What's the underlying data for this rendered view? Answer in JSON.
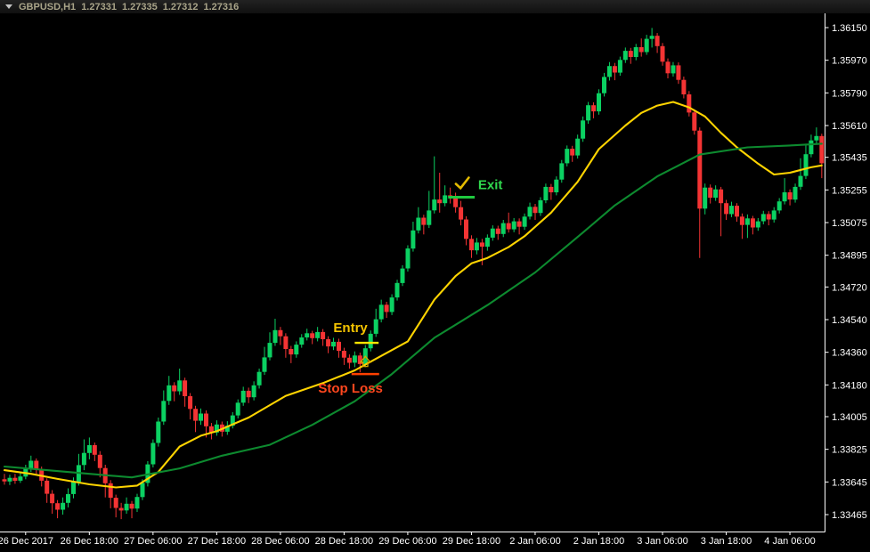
{
  "titlebar": {
    "symbol_period": "GBPUSD,H1",
    "quote_open": "1.27331",
    "quote_high": "1.27335",
    "quote_low": "1.27312",
    "quote_close": "1.27316"
  },
  "colors": {
    "background": "#000000",
    "bull_candle": "#0bd162",
    "bear_candle": "#f43434",
    "fast_ma": "#ffd400",
    "slow_ma": "#0d8a2f",
    "axis_line": "#ffffff",
    "axis_text": "#ffffff",
    "title_text": "#a9a489",
    "entry_text": "#f5c400",
    "entry_line": "#ffe600",
    "buy_arrow": "#d9a800",
    "stop_loss_text": "#ff471e",
    "stop_loss_line": "#ff4000",
    "exit_text": "#30d94e",
    "exit_line": "#1fc93f",
    "check_icon": "#e3bb00"
  },
  "chart_data": {
    "type": "candlestick",
    "symbol": "GBPUSD",
    "timeframe": "H1",
    "grid": "off",
    "legend_position": "none",
    "ylim": [
      1.33372,
      1.36229
    ],
    "y_axis": {
      "side": "right",
      "labels": [
        "1.36150",
        "1.35970",
        "1.35790",
        "1.35610",
        "1.35435",
        "1.35255",
        "1.35075",
        "1.34895",
        "1.34720",
        "1.34540",
        "1.34360",
        "1.34180",
        "1.34005",
        "1.33825",
        "1.33645",
        "1.33465"
      ]
    },
    "x_axis": {
      "labels": [
        "26 Dec 2017",
        "26 Dec 18:00",
        "27 Dec 06:00",
        "27 Dec 18:00",
        "28 Dec 06:00",
        "28 Dec 18:00",
        "29 Dec 06:00",
        "29 Dec 18:00",
        "2 Jan 06:00",
        "2 Jan 18:00",
        "3 Jan 06:00",
        "3 Jan 18:00",
        "4 Jan 06:00"
      ],
      "bars_per_gridline": 12
    },
    "candles": [
      [
        1.3366,
        1.3369,
        1.3363,
        1.33648
      ],
      [
        1.33648,
        1.33685,
        1.33628,
        1.33668
      ],
      [
        1.33668,
        1.3369,
        1.33635,
        1.33652
      ],
      [
        1.33652,
        1.337,
        1.3364,
        1.33675
      ],
      [
        1.33675,
        1.3374,
        1.3366,
        1.33718
      ],
      [
        1.33718,
        1.3379,
        1.337,
        1.33762
      ],
      [
        1.33762,
        1.33775,
        1.3369,
        1.33715
      ],
      [
        1.33715,
        1.3373,
        1.3362,
        1.33652
      ],
      [
        1.33652,
        1.33665,
        1.3353,
        1.3358
      ],
      [
        1.3358,
        1.336,
        1.3347,
        1.33528
      ],
      [
        1.33528,
        1.33545,
        1.33445,
        1.33492
      ],
      [
        1.33492,
        1.3356,
        1.33465,
        1.3353
      ],
      [
        1.3353,
        1.3361,
        1.33505,
        1.33578
      ],
      [
        1.33578,
        1.3367,
        1.33555,
        1.33645
      ],
      [
        1.33645,
        1.338,
        1.33625,
        1.33738
      ],
      [
        1.33738,
        1.3388,
        1.3371,
        1.33805
      ],
      [
        1.33805,
        1.3389,
        1.3377,
        1.33848
      ],
      [
        1.33848,
        1.33862,
        1.3376,
        1.33795
      ],
      [
        1.33795,
        1.33815,
        1.3367,
        1.33722
      ],
      [
        1.33722,
        1.3374,
        1.3356,
        1.33638
      ],
      [
        1.33638,
        1.33655,
        1.335,
        1.33558
      ],
      [
        1.33558,
        1.33575,
        1.3345,
        1.33502
      ],
      [
        1.33502,
        1.3353,
        1.3344,
        1.33488
      ],
      [
        1.33488,
        1.3356,
        1.3347,
        1.33525
      ],
      [
        1.33525,
        1.3354,
        1.33445,
        1.33498
      ],
      [
        1.33498,
        1.3358,
        1.3348,
        1.33562
      ],
      [
        1.33562,
        1.3366,
        1.33545,
        1.3364
      ],
      [
        1.3364,
        1.3376,
        1.3362,
        1.33742
      ],
      [
        1.33742,
        1.3388,
        1.33725,
        1.3386
      ],
      [
        1.3386,
        1.34,
        1.3384,
        1.33978
      ],
      [
        1.33978,
        1.3415,
        1.3396,
        1.34092
      ],
      [
        1.34092,
        1.3423,
        1.3407,
        1.34178
      ],
      [
        1.34178,
        1.34195,
        1.3409,
        1.34145
      ],
      [
        1.34145,
        1.3427,
        1.34125,
        1.34205
      ],
      [
        1.34205,
        1.3422,
        1.3406,
        1.34118
      ],
      [
        1.34118,
        1.34135,
        1.3399,
        1.34048
      ],
      [
        1.34048,
        1.34065,
        1.3392,
        1.33982
      ],
      [
        1.33982,
        1.3405,
        1.3396,
        1.34022
      ],
      [
        1.34022,
        1.3404,
        1.3389,
        1.33952
      ],
      [
        1.33952,
        1.3397,
        1.3388,
        1.33918
      ],
      [
        1.33918,
        1.33985,
        1.339,
        1.33962
      ],
      [
        1.33962,
        1.33978,
        1.33895,
        1.33922
      ],
      [
        1.33922,
        1.3398,
        1.33905,
        1.33955
      ],
      [
        1.33955,
        1.3403,
        1.3394,
        1.34012
      ],
      [
        1.34012,
        1.341,
        1.33995,
        1.34082
      ],
      [
        1.34082,
        1.3417,
        1.34065,
        1.34148
      ],
      [
        1.34148,
        1.34165,
        1.3408,
        1.34112
      ],
      [
        1.34112,
        1.342,
        1.34095,
        1.34178
      ],
      [
        1.34178,
        1.3427,
        1.3416,
        1.34252
      ],
      [
        1.34252,
        1.3439,
        1.34235,
        1.34332
      ],
      [
        1.34332,
        1.3447,
        1.34315,
        1.34412
      ],
      [
        1.34412,
        1.34545,
        1.34395,
        1.34482
      ],
      [
        1.34482,
        1.345,
        1.344,
        1.34448
      ],
      [
        1.34448,
        1.34465,
        1.3433,
        1.34378
      ],
      [
        1.34378,
        1.34395,
        1.343,
        1.34348
      ],
      [
        1.34348,
        1.3442,
        1.3433,
        1.34402
      ],
      [
        1.34402,
        1.3446,
        1.34385,
        1.34442
      ],
      [
        1.34442,
        1.3449,
        1.34425,
        1.34465
      ],
      [
        1.34465,
        1.34478,
        1.34405,
        1.34438
      ],
      [
        1.34438,
        1.345,
        1.3442,
        1.34472
      ],
      [
        1.34472,
        1.34488,
        1.34395,
        1.34432
      ],
      [
        1.34432,
        1.34448,
        1.34355,
        1.34392
      ],
      [
        1.34392,
        1.3444,
        1.34372,
        1.34418
      ],
      [
        1.34418,
        1.34435,
        1.3433,
        1.34368
      ],
      [
        1.34368,
        1.34385,
        1.3429,
        1.3433
      ],
      [
        1.3433,
        1.34348,
        1.3427,
        1.34302
      ],
      [
        1.34302,
        1.34365,
        1.34278,
        1.34342
      ],
      [
        1.34342,
        1.34358,
        1.3425,
        1.34295
      ],
      [
        1.34295,
        1.344,
        1.34278,
        1.34382
      ],
      [
        1.34382,
        1.3448,
        1.34365,
        1.34462
      ],
      [
        1.34462,
        1.346,
        1.34445,
        1.34542
      ],
      [
        1.34542,
        1.3465,
        1.34525,
        1.34622
      ],
      [
        1.34622,
        1.34638,
        1.3455,
        1.34582
      ],
      [
        1.34582,
        1.3468,
        1.34565,
        1.34662
      ],
      [
        1.34662,
        1.3476,
        1.34645,
        1.34742
      ],
      [
        1.34742,
        1.3484,
        1.34725,
        1.34822
      ],
      [
        1.34822,
        1.3495,
        1.34805,
        1.34932
      ],
      [
        1.34932,
        1.3508,
        1.34915,
        1.35032
      ],
      [
        1.35032,
        1.3516,
        1.35015,
        1.35102
      ],
      [
        1.35102,
        1.35118,
        1.3501,
        1.35062
      ],
      [
        1.35062,
        1.3525,
        1.35045,
        1.35142
      ],
      [
        1.35142,
        1.3544,
        1.35125,
        1.35202
      ],
      [
        1.35202,
        1.3535,
        1.3513,
        1.35182
      ],
      [
        1.35182,
        1.3528,
        1.35165,
        1.35225
      ],
      [
        1.35225,
        1.35268,
        1.3518,
        1.35218
      ],
      [
        1.35218,
        1.3524,
        1.3513,
        1.3516
      ],
      [
        1.3516,
        1.35195,
        1.3506,
        1.35092
      ],
      [
        1.35092,
        1.3511,
        1.3495,
        1.34985
      ],
      [
        1.34985,
        1.35005,
        1.3488,
        1.34922
      ],
      [
        1.34922,
        1.3499,
        1.349,
        1.34965
      ],
      [
        1.34965,
        1.34985,
        1.3484,
        1.34942
      ],
      [
        1.34942,
        1.3501,
        1.3492,
        1.34992
      ],
      [
        1.34992,
        1.3506,
        1.34975,
        1.35042
      ],
      [
        1.35042,
        1.35058,
        1.3498,
        1.35012
      ],
      [
        1.35012,
        1.3509,
        1.34995,
        1.35072
      ],
      [
        1.35072,
        1.3513,
        1.3502,
        1.35038
      ],
      [
        1.35038,
        1.351,
        1.35022,
        1.35082
      ],
      [
        1.35082,
        1.35098,
        1.3501,
        1.35052
      ],
      [
        1.35052,
        1.35125,
        1.35035,
        1.35108
      ],
      [
        1.35108,
        1.35185,
        1.35092,
        1.35162
      ],
      [
        1.35162,
        1.35178,
        1.3509,
        1.35128
      ],
      [
        1.35128,
        1.35215,
        1.35112,
        1.35198
      ],
      [
        1.35198,
        1.3529,
        1.35182,
        1.35272
      ],
      [
        1.35272,
        1.35288,
        1.352,
        1.35242
      ],
      [
        1.35242,
        1.3533,
        1.35225,
        1.35312
      ],
      [
        1.35312,
        1.3542,
        1.35295,
        1.35402
      ],
      [
        1.35402,
        1.355,
        1.35385,
        1.35482
      ],
      [
        1.35482,
        1.35498,
        1.3541,
        1.35445
      ],
      [
        1.35445,
        1.3556,
        1.35428,
        1.35538
      ],
      [
        1.35538,
        1.3566,
        1.3552,
        1.35638
      ],
      [
        1.35638,
        1.3574,
        1.3562,
        1.35722
      ],
      [
        1.35722,
        1.35738,
        1.3565,
        1.35688
      ],
      [
        1.35688,
        1.3581,
        1.3567,
        1.35788
      ],
      [
        1.35788,
        1.359,
        1.3577,
        1.35878
      ],
      [
        1.35878,
        1.3596,
        1.35858,
        1.35938
      ],
      [
        1.35938,
        1.35955,
        1.3586,
        1.35902
      ],
      [
        1.35902,
        1.3599,
        1.35885,
        1.35972
      ],
      [
        1.35972,
        1.3604,
        1.35955,
        1.36022
      ],
      [
        1.36022,
        1.36038,
        1.3595,
        1.35988
      ],
      [
        1.35988,
        1.3606,
        1.3597,
        1.36042
      ],
      [
        1.36042,
        1.3609,
        1.3599,
        1.36015
      ],
      [
        1.36015,
        1.3611,
        1.36,
        1.36088
      ],
      [
        1.36088,
        1.36148,
        1.3604,
        1.36105
      ],
      [
        1.36105,
        1.3612,
        1.3601,
        1.36048
      ],
      [
        1.36048,
        1.36065,
        1.3594,
        1.35962
      ],
      [
        1.35962,
        1.3598,
        1.3587,
        1.35898
      ],
      [
        1.35898,
        1.3596,
        1.3588,
        1.35942
      ],
      [
        1.35942,
        1.35958,
        1.3584,
        1.35862
      ],
      [
        1.35862,
        1.3588,
        1.3576,
        1.35782
      ],
      [
        1.35782,
        1.358,
        1.3566,
        1.35682
      ],
      [
        1.35682,
        1.357,
        1.3556,
        1.35582
      ],
      [
        1.35582,
        1.356,
        1.3488,
        1.35152
      ],
      [
        1.35152,
        1.3529,
        1.3512,
        1.35268
      ],
      [
        1.35268,
        1.35285,
        1.3518,
        1.35212
      ],
      [
        1.35212,
        1.3528,
        1.35195,
        1.35258
      ],
      [
        1.35258,
        1.35272,
        1.35,
        1.35182
      ],
      [
        1.35182,
        1.352,
        1.3509,
        1.35122
      ],
      [
        1.35122,
        1.3519,
        1.35105,
        1.35168
      ],
      [
        1.35168,
        1.35182,
        1.3508,
        1.35108
      ],
      [
        1.35108,
        1.35125,
        1.34985,
        1.35062
      ],
      [
        1.35062,
        1.3512,
        1.3499,
        1.35098
      ],
      [
        1.35098,
        1.35112,
        1.3501,
        1.35048
      ],
      [
        1.35048,
        1.351,
        1.3503,
        1.35082
      ],
      [
        1.35082,
        1.3514,
        1.35065,
        1.35122
      ],
      [
        1.35122,
        1.35138,
        1.3506,
        1.35092
      ],
      [
        1.35092,
        1.3516,
        1.35075,
        1.35142
      ],
      [
        1.35142,
        1.3521,
        1.35125,
        1.35192
      ],
      [
        1.35192,
        1.3532,
        1.35175,
        1.35242
      ],
      [
        1.35242,
        1.35258,
        1.3517,
        1.35202
      ],
      [
        1.35202,
        1.3529,
        1.35185,
        1.35272
      ],
      [
        1.35272,
        1.3543,
        1.35255,
        1.35332
      ],
      [
        1.35332,
        1.3551,
        1.35315,
        1.35452
      ],
      [
        1.35452,
        1.3556,
        1.35435,
        1.35528
      ],
      [
        1.35528,
        1.356,
        1.3551,
        1.35552
      ],
      [
        1.35552,
        1.35565,
        1.3532,
        1.35402
      ]
    ],
    "indicators": [
      {
        "name": "fast-ma",
        "style": "yellow",
        "points": [
          [
            0,
            1.3371
          ],
          [
            5,
            1.3369
          ],
          [
            10,
            1.33662
          ],
          [
            16,
            1.33632
          ],
          [
            21,
            1.33615
          ],
          [
            25,
            1.33625
          ],
          [
            29,
            1.337
          ],
          [
            33,
            1.3384
          ],
          [
            37,
            1.339
          ],
          [
            40,
            1.33925
          ],
          [
            46,
            1.34
          ],
          [
            53,
            1.3412
          ],
          [
            60,
            1.3419
          ],
          [
            66,
            1.3426
          ],
          [
            71,
            1.3434
          ],
          [
            76,
            1.3442
          ],
          [
            81,
            1.3465
          ],
          [
            85,
            1.3478
          ],
          [
            88,
            1.3485
          ],
          [
            91,
            1.3488
          ],
          [
            95,
            1.3494
          ],
          [
            98,
            1.35
          ],
          [
            103,
            1.3513
          ],
          [
            108,
            1.353
          ],
          [
            112,
            1.3548
          ],
          [
            117,
            1.3561
          ],
          [
            120,
            1.3568
          ],
          [
            123,
            1.3572
          ],
          [
            126,
            1.3574
          ],
          [
            129,
            1.3571
          ],
          [
            132,
            1.3566
          ],
          [
            135,
            1.3557
          ],
          [
            138,
            1.3549
          ],
          [
            142,
            1.354
          ],
          [
            145,
            1.3534
          ],
          [
            148,
            1.3535
          ],
          [
            152,
            1.3538
          ],
          [
            154,
            1.3539
          ]
        ]
      },
      {
        "name": "slow-ma",
        "style": "green",
        "points": [
          [
            0,
            1.3373
          ],
          [
            8,
            1.3371
          ],
          [
            16,
            1.3369
          ],
          [
            24,
            1.3367
          ],
          [
            33,
            1.3372
          ],
          [
            41,
            1.3379
          ],
          [
            50,
            1.3385
          ],
          [
            58,
            1.3396
          ],
          [
            66,
            1.3409
          ],
          [
            73,
            1.3424
          ],
          [
            81,
            1.3444
          ],
          [
            91,
            1.3462
          ],
          [
            100,
            1.348
          ],
          [
            109,
            1.3502
          ],
          [
            115,
            1.3517
          ],
          [
            123,
            1.3533
          ],
          [
            131,
            1.3545
          ],
          [
            140,
            1.3549
          ],
          [
            148,
            1.355
          ],
          [
            154,
            1.3551
          ]
        ]
      }
    ],
    "trade_markers": {
      "entry": {
        "label": "Entry",
        "price": 1.34412,
        "bar_from": 66,
        "bar_to": 70.5,
        "arrow_bar": 68,
        "label_bar": 65.2
      },
      "stop_loss": {
        "label": "Stop Loss",
        "price": 1.3424,
        "bar_from": 65.4,
        "bar_to": 70.6,
        "label_bar": 65.2
      },
      "exit": {
        "label": "Exit",
        "price": 1.35215,
        "bar_from": 83.6,
        "bar_to": 88.6,
        "check_bar": 85.8,
        "label_bar": 88.9
      }
    }
  }
}
